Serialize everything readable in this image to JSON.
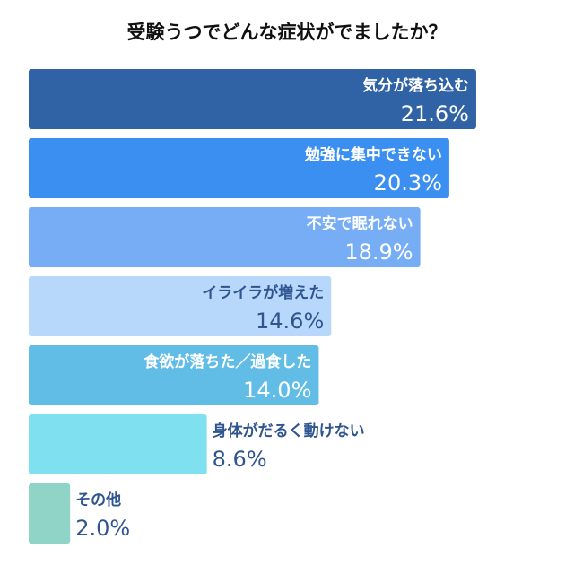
{
  "chart_data": {
    "type": "bar",
    "orientation": "horizontal",
    "title": "受験うつでどんな症状がでましたか？",
    "categories": [
      "気分が落ち込む",
      "勉強に集中できない",
      "不安で眠れない",
      "イライラが増えた",
      "食欲が落ちた／過食した",
      "身体がだるく動けない",
      "その他"
    ],
    "values": [
      21.6,
      20.3,
      18.9,
      14.6,
      14.0,
      8.6,
      2.0
    ],
    "value_labels": [
      "21.6%",
      "20.3%",
      "18.9%",
      "14.6%",
      "14.0%",
      "8.6%",
      "2.0%"
    ],
    "unit": "%",
    "colors": [
      "#2f63a6",
      "#3a8ff0",
      "#77adf5",
      "#b8d8fb",
      "#62bde6",
      "#7fe0ef",
      "#8fd4c6"
    ],
    "text_colors": [
      "#ffffff",
      "#ffffff",
      "#ffffff",
      "#2f5590",
      "#ffffff",
      "#2f5590",
      "#2f5590"
    ],
    "xlabel": "",
    "ylabel": "",
    "legend": "none",
    "grid": false
  }
}
